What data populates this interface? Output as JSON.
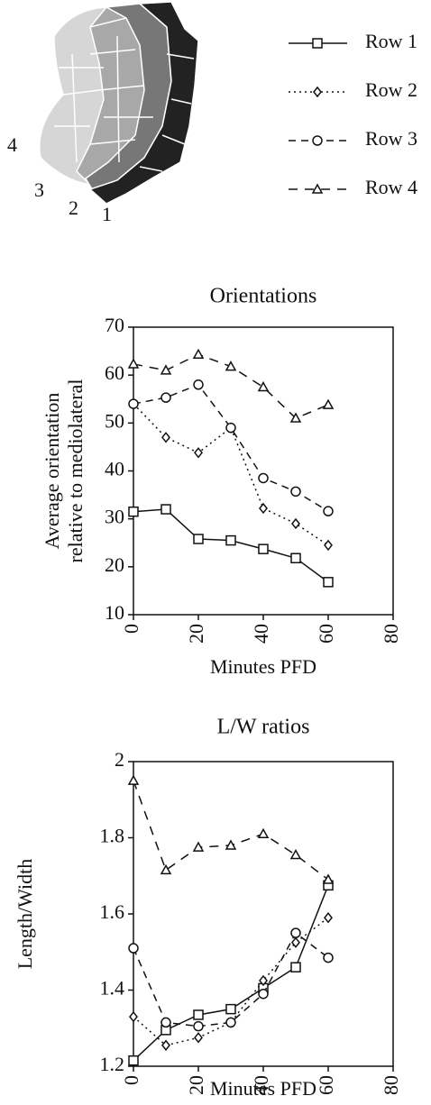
{
  "diagram": {
    "row_labels": [
      "1",
      "2",
      "3",
      "4"
    ]
  },
  "chart_data": [
    {
      "type": "line",
      "title": "Orientations",
      "ylabel": [
        "Average orientation",
        "relative to mediolateral"
      ],
      "xlabel": "Minutes PFD",
      "x": [
        0,
        10,
        20,
        30,
        40,
        50,
        60
      ],
      "xlim": [
        0,
        80
      ],
      "xticks": [
        0,
        20,
        40,
        60,
        80
      ],
      "ylim": [
        10,
        70
      ],
      "yticks": [
        10,
        20,
        30,
        40,
        50,
        60,
        70
      ],
      "series": [
        {
          "name": "Row 1",
          "color": "#111111",
          "marker": "square",
          "dash": "solid",
          "values": [
            31.5,
            32,
            25.8,
            25.5,
            23.7,
            21.8,
            16.8
          ]
        },
        {
          "name": "Row 2",
          "color": "#111111",
          "marker": "diamond",
          "dash": "dotted",
          "values": [
            54,
            47,
            43.8,
            49,
            32.2,
            29,
            24.5
          ]
        },
        {
          "name": "Row 3",
          "color": "#111111",
          "marker": "circle",
          "dash": "dashed",
          "values": [
            54,
            55.3,
            58,
            49,
            38.5,
            35.7,
            31.6
          ]
        },
        {
          "name": "Row 4",
          "color": "#111111",
          "marker": "triangle",
          "dash": "longdash",
          "values": [
            62.3,
            61,
            64.3,
            61.8,
            57.5,
            51,
            53.8
          ]
        }
      ]
    },
    {
      "type": "line",
      "title": "L/W ratios",
      "ylabel": [
        "Length/Width"
      ],
      "xlabel": "Minutes PFD",
      "x": [
        0,
        10,
        20,
        30,
        40,
        50,
        60
      ],
      "xlim": [
        0,
        80
      ],
      "xticks": [
        0,
        20,
        40,
        60,
        80
      ],
      "ylim": [
        1.2,
        2
      ],
      "yticks": [
        1.2,
        1.4,
        1.6,
        1.8,
        2
      ],
      "series": [
        {
          "color": "#111111",
          "marker": "square",
          "dash": "solid",
          "values": [
            1.215,
            1.295,
            1.335,
            1.35,
            1.405,
            1.46,
            1.675
          ]
        },
        {
          "color": "#111111",
          "marker": "diamond",
          "dash": "dotted",
          "values": [
            1.33,
            1.255,
            1.275,
            1.315,
            1.425,
            1.525,
            1.59
          ]
        },
        {
          "color": "#111111",
          "marker": "circle",
          "dash": "dashed",
          "values": [
            1.51,
            1.315,
            1.305,
            1.315,
            1.39,
            1.55,
            1.485
          ]
        },
        {
          "color": "#111111",
          "marker": "triangle",
          "dash": "longdash",
          "values": [
            1.95,
            1.715,
            1.775,
            1.78,
            1.81,
            1.755,
            1.69
          ]
        }
      ]
    }
  ]
}
